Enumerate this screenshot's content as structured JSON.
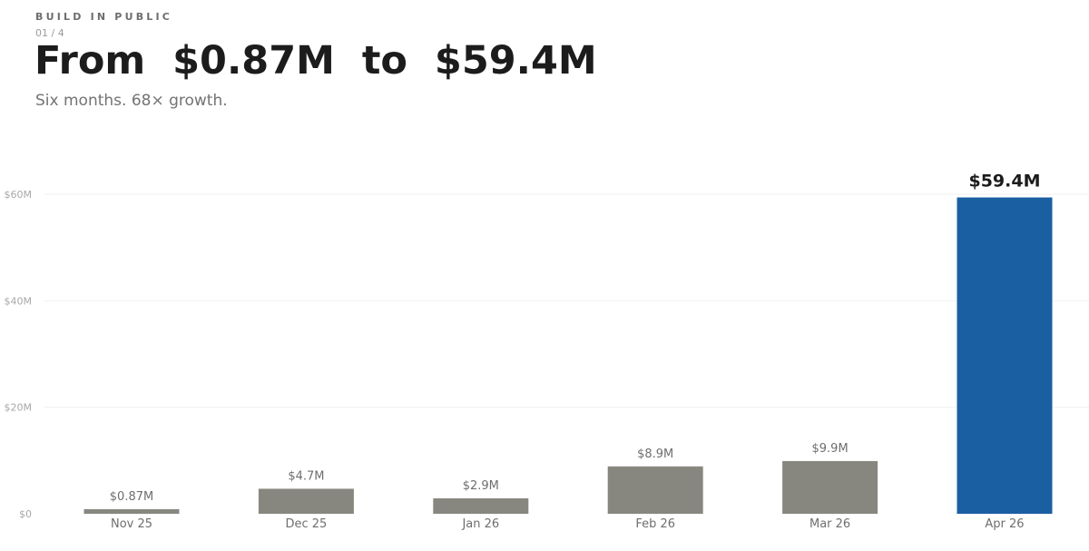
{
  "header": {
    "eyebrow": "BUILD IN PUBLIC",
    "pager": "01 / 4",
    "title": "From  $0.87M  to  $59.4M",
    "subtitle": "Six months. 68× growth."
  },
  "colors": {
    "bar": "#88877f",
    "highlight_bar": "#1b5fa3",
    "grid": "#f0f0f0",
    "tick_label": "#a8a8a8",
    "value_label": "#6e6e6e",
    "highlight_label": "#1c1c1c",
    "category_label": "#6e6e6e"
  },
  "chart_data": {
    "type": "bar",
    "categories": [
      "Nov 25",
      "Dec 25",
      "Jan 26",
      "Feb 26",
      "Mar 26",
      "Apr 26"
    ],
    "values": [
      0.87,
      4.7,
      2.9,
      8.9,
      9.9,
      59.4
    ],
    "data_labels": [
      "$0.87M",
      "$4.7M",
      "$2.9M",
      "$8.9M",
      "$9.9M",
      "$59.4M"
    ],
    "highlight_index": 5,
    "ylim": [
      0,
      60
    ],
    "yticks": [
      0,
      20,
      40,
      60
    ],
    "ytick_labels": [
      "$0",
      "$20M",
      "$40M",
      "$60M"
    ],
    "grid": true,
    "legend": "none"
  }
}
